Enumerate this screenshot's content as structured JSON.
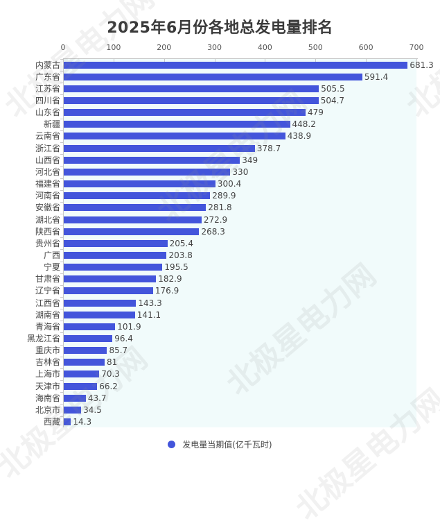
{
  "chart_data": {
    "type": "bar",
    "orientation": "horizontal",
    "title": "2025年6月份各地总发电量排名",
    "xlabel": "",
    "ylabel": "",
    "xlim": [
      0,
      700
    ],
    "x_ticks": [
      0,
      100,
      200,
      300,
      400,
      500,
      600,
      700
    ],
    "x_axis_position": "top",
    "grid": false,
    "legend_position": "bottom",
    "categories": [
      "内蒙古",
      "广东省",
      "江苏省",
      "四川省",
      "山东省",
      "新疆",
      "云南省",
      "浙江省",
      "山西省",
      "河北省",
      "福建省",
      "河南省",
      "安徽省",
      "湖北省",
      "陕西省",
      "贵州省",
      "广西",
      "宁夏",
      "甘肃省",
      "辽宁省",
      "江西省",
      "湖南省",
      "青海省",
      "黑龙江省",
      "重庆市",
      "吉林省",
      "上海市",
      "天津市",
      "海南省",
      "北京市",
      "西藏"
    ],
    "series": [
      {
        "name": "发电量当期值(亿千瓦时)",
        "color": "#4355db",
        "values": [
          681.3,
          591.4,
          505.5,
          504.7,
          479,
          448.2,
          438.9,
          378.7,
          349,
          330,
          300.4,
          289.9,
          281.8,
          272.9,
          268.3,
          205.4,
          203.8,
          195.5,
          182.9,
          176.9,
          143.3,
          141.1,
          101.9,
          96.4,
          85.7,
          81,
          70.3,
          66.2,
          43.7,
          34.5,
          14.3
        ]
      }
    ]
  },
  "colors": {
    "bar": "#4355db",
    "plot_background": "#f1fbfb",
    "title": "#3a3a3a"
  },
  "watermark": "北极星电力网"
}
